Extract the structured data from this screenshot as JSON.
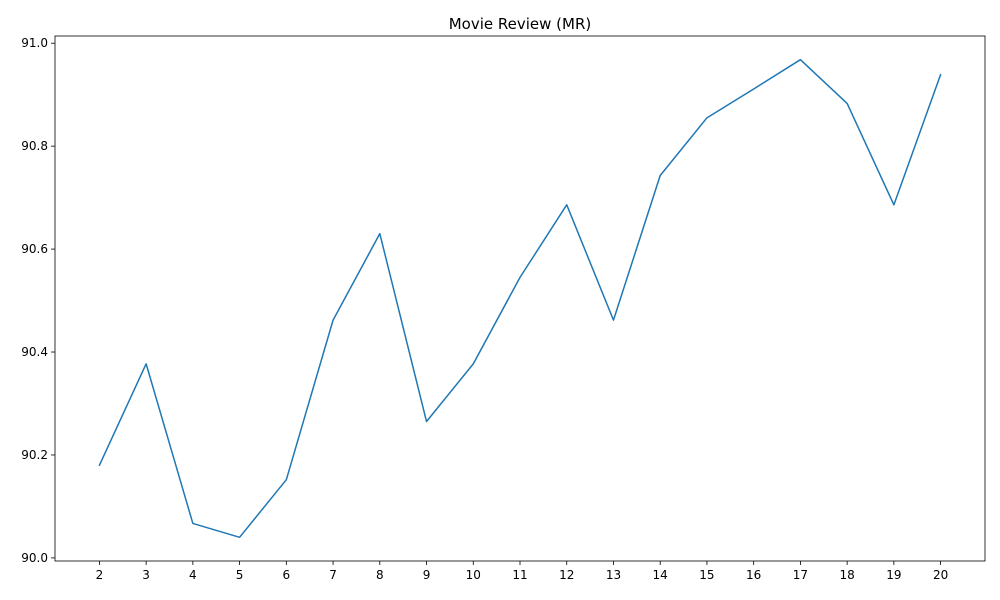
{
  "chart_data": {
    "type": "line",
    "title": "Movie Review (MR)",
    "xlabel": "",
    "ylabel": "",
    "x": [
      2,
      3,
      4,
      5,
      6,
      7,
      8,
      9,
      10,
      11,
      12,
      13,
      14,
      15,
      16,
      17,
      18,
      19,
      20
    ],
    "series": [
      {
        "color": "#1f77b4",
        "values": [
          90.18,
          90.377,
          90.067,
          90.04,
          90.152,
          90.462,
          90.63,
          90.265,
          90.377,
          90.545,
          90.686,
          90.462,
          90.743,
          90.855,
          90.911,
          90.968,
          90.883,
          90.686,
          90.939
        ]
      }
    ],
    "xticks": [
      "2",
      "3",
      "4",
      "5",
      "6",
      "7",
      "8",
      "9",
      "10",
      "11",
      "12",
      "13",
      "14",
      "15",
      "16",
      "17",
      "18",
      "19",
      "20"
    ],
    "yticks": [
      "90.0",
      "90.2",
      "90.4",
      "90.6",
      "90.8",
      "91.0"
    ],
    "xlim": [
      1.05,
      20.95
    ],
    "ylim": [
      89.994,
      91.014
    ],
    "grid": false,
    "legend": "none"
  }
}
